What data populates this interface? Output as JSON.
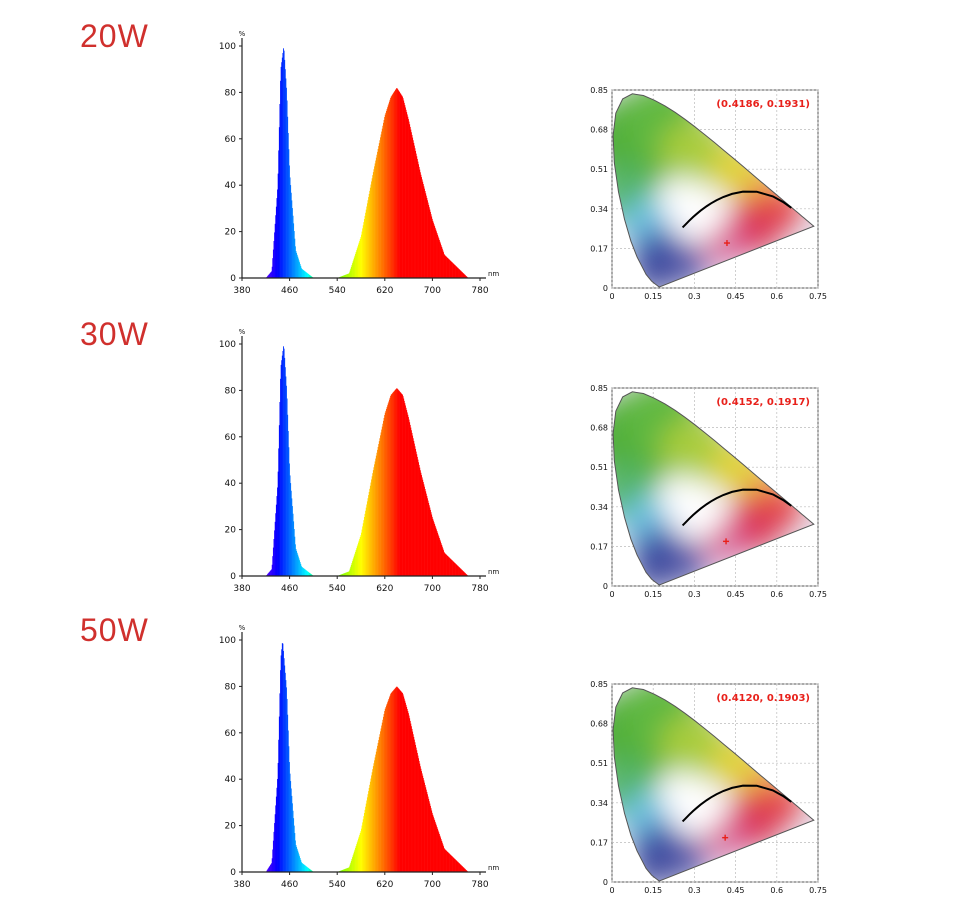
{
  "rows": [
    {
      "power": "20W",
      "coord_text": "(0.4186,  0.1931)"
    },
    {
      "power": "30W",
      "coord_text": "(0.4152,  0.1917)"
    },
    {
      "power": "50W",
      "coord_text": "(0.4120,  0.1903)"
    }
  ],
  "chart_data": [
    {
      "type": "area",
      "ylabel": "%",
      "xlabel": "nm",
      "xlim": [
        380,
        780
      ],
      "ylim": [
        0,
        100
      ],
      "x_ticks": [
        "380",
        "460",
        "540",
        "620",
        "700",
        "780"
      ],
      "y_ticks": [
        "0",
        "20",
        "40",
        "60",
        "80",
        "100"
      ],
      "blue_peak": {
        "nm": 450,
        "value": 100
      },
      "red_peak": {
        "nm": 640,
        "value": 82
      },
      "x": [
        380,
        420,
        430,
        440,
        445,
        450,
        455,
        460,
        470,
        480,
        500,
        540,
        560,
        580,
        600,
        620,
        630,
        640,
        650,
        660,
        680,
        700,
        720,
        740,
        760,
        780
      ],
      "values": [
        0,
        0,
        3,
        40,
        90,
        100,
        80,
        45,
        12,
        4,
        0,
        0,
        2,
        18,
        45,
        70,
        78,
        82,
        78,
        68,
        45,
        25,
        10,
        5,
        0,
        0
      ]
    },
    {
      "type": "scatter",
      "xlim": [
        0,
        0.75
      ],
      "ylim": [
        0,
        0.85
      ],
      "x_ticks": [
        "0",
        "0.15",
        "0.3",
        "0.45",
        "0.6",
        "0.75"
      ],
      "y_ticks": [
        "0",
        "0.17",
        "0.34",
        "0.51",
        "0.68",
        "0.85"
      ],
      "point": {
        "x": 0.4186,
        "y": 0.1931
      },
      "annotation": "(0.4186,  0.1931)"
    },
    {
      "type": "area",
      "ylabel": "%",
      "xlabel": "nm",
      "xlim": [
        380,
        780
      ],
      "ylim": [
        0,
        100
      ],
      "x_ticks": [
        "380",
        "460",
        "540",
        "620",
        "700",
        "780"
      ],
      "y_ticks": [
        "0",
        "20",
        "40",
        "60",
        "80",
        "100"
      ],
      "blue_peak": {
        "nm": 450,
        "value": 100
      },
      "red_peak": {
        "nm": 640,
        "value": 81
      },
      "x": [
        380,
        420,
        430,
        440,
        445,
        450,
        455,
        460,
        470,
        480,
        500,
        540,
        560,
        580,
        600,
        620,
        630,
        640,
        650,
        660,
        680,
        700,
        720,
        740,
        760,
        780
      ],
      "values": [
        0,
        0,
        3,
        40,
        90,
        100,
        80,
        45,
        12,
        4,
        0,
        0,
        2,
        18,
        45,
        70,
        78,
        81,
        78,
        68,
        45,
        25,
        10,
        5,
        0,
        0
      ]
    },
    {
      "type": "scatter",
      "xlim": [
        0,
        0.75
      ],
      "ylim": [
        0,
        0.85
      ],
      "x_ticks": [
        "0",
        "0.15",
        "0.3",
        "0.45",
        "0.6",
        "0.75"
      ],
      "y_ticks": [
        "0",
        "0.17",
        "0.34",
        "0.51",
        "0.68",
        "0.85"
      ],
      "point": {
        "x": 0.4152,
        "y": 0.1917
      },
      "annotation": "(0.4152,  0.1917)"
    },
    {
      "type": "area",
      "ylabel": "%",
      "xlabel": "nm",
      "xlim": [
        380,
        780
      ],
      "ylim": [
        0,
        100
      ],
      "x_ticks": [
        "380",
        "460",
        "540",
        "620",
        "700",
        "780"
      ],
      "y_ticks": [
        "0",
        "20",
        "40",
        "60",
        "80",
        "100"
      ],
      "blue_peak": {
        "nm": 448,
        "value": 100
      },
      "red_peak": {
        "nm": 640,
        "value": 80
      },
      "x": [
        380,
        420,
        430,
        440,
        445,
        448,
        455,
        460,
        470,
        480,
        500,
        540,
        560,
        580,
        600,
        620,
        630,
        640,
        650,
        660,
        680,
        700,
        720,
        740,
        760,
        780
      ],
      "values": [
        0,
        0,
        4,
        42,
        92,
        100,
        78,
        44,
        12,
        4,
        0,
        0,
        2,
        18,
        45,
        70,
        77,
        80,
        77,
        68,
        45,
        25,
        10,
        5,
        0,
        0
      ]
    },
    {
      "type": "scatter",
      "xlim": [
        0,
        0.75
      ],
      "ylim": [
        0,
        0.85
      ],
      "x_ticks": [
        "0",
        "0.15",
        "0.3",
        "0.45",
        "0.6",
        "0.75"
      ],
      "y_ticks": [
        "0",
        "0.17",
        "0.34",
        "0.51",
        "0.68",
        "0.85"
      ],
      "point": {
        "x": 0.412,
        "y": 0.1903
      },
      "annotation": "(0.4120,  0.1903)"
    }
  ],
  "colors": {
    "label_red": "#d0302d",
    "coord_red": "#e8201a",
    "axis": "#222222",
    "grid": "#bbbbbb"
  }
}
